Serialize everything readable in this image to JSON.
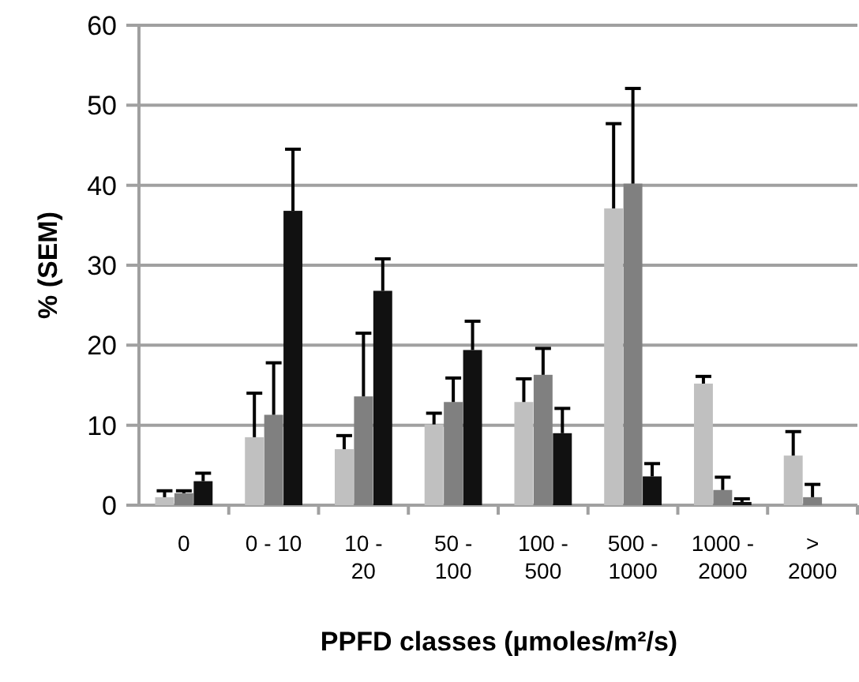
{
  "chart_data": {
    "type": "bar",
    "xlabel": "PPFD classes (µmoles/m²/s)",
    "ylabel": "% (SEM)",
    "categories": [
      "0",
      "0 - 10",
      "10 -\n20",
      "50 -\n100",
      "100 -\n500",
      "500 -\n1000",
      "1000 -\n2000",
      ">\n2000"
    ],
    "series": [
      {
        "color": "#c0c0c0",
        "values": [
          1.0,
          8.5,
          7.0,
          10.1,
          12.9,
          37.1,
          15.2,
          6.2
        ],
        "errors": [
          0.8,
          5.5,
          1.7,
          1.4,
          2.9,
          10.6,
          0.9,
          3.0
        ]
      },
      {
        "color": "#808080",
        "values": [
          1.5,
          11.3,
          13.6,
          12.9,
          16.3,
          40.2,
          1.9,
          1.0
        ],
        "errors": [
          0.3,
          6.5,
          7.9,
          3.0,
          3.3,
          11.9,
          1.6,
          1.6
        ]
      },
      {
        "color": "#111111",
        "values": [
          3.0,
          36.8,
          26.8,
          19.4,
          9.0,
          3.6,
          0.4,
          null
        ],
        "errors": [
          1.0,
          7.7,
          4.0,
          3.6,
          3.1,
          1.6,
          0.4,
          null
        ]
      }
    ],
    "ylim": [
      0,
      60
    ],
    "yticks": [
      0,
      10,
      20,
      30,
      40,
      50,
      60
    ],
    "grid": "y"
  }
}
